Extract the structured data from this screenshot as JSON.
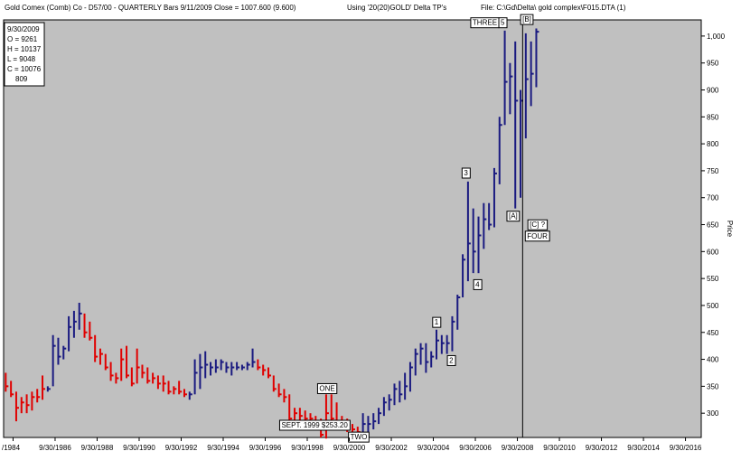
{
  "header": {
    "left": "Gold Comex (Comb) Co - D57/00  - QUARTERLY Bars  9/11/2009 Close = 1007.600 (9.600)",
    "mid": "Using '20(20)GOLD' Delta TP's",
    "right": "File: C:\\Gd\\Delta\\ gold complex\\F015.DTA (1)"
  },
  "info_box": {
    "date": "9/30/2009",
    "open": "O = 9261",
    "high": "H = 10137",
    "low": "L = 9048",
    "close": "C = 10076",
    "extra": "809"
  },
  "colors": {
    "plot_bg": "#c0c0c0",
    "up": "#1a1a80",
    "down": "#e00000",
    "axis": "#000000"
  },
  "chart_data": {
    "type": "bar",
    "subtype": "ohlc",
    "ylabel": "Price",
    "ylim": [
      255,
      1030
    ],
    "xlim": [
      1984.3,
      2017.5
    ],
    "x_tick_labels": [
      "/1984",
      "9/30/1986",
      "9/30/1988",
      "9/30/1990",
      "9/30/1992",
      "9/30/1994",
      "9/30/1996",
      "9/30/1998",
      "9/30/2000",
      "9/30/2002",
      "9/30/2004",
      "9/30/2006",
      "9/30/2008",
      "9/30/2010",
      "9/30/2012",
      "9/30/2014",
      "9/30/2016"
    ],
    "x_tick_values": [
      1984.75,
      1986.75,
      1988.75,
      1990.75,
      1992.75,
      1994.75,
      1996.75,
      1998.75,
      2000.75,
      2002.75,
      2004.75,
      2006.75,
      2008.75,
      2010.75,
      2012.75,
      2014.75,
      2016.75
    ],
    "y_ticks": [
      {
        "v": 300,
        "label": "300"
      },
      {
        "v": 350,
        "label": "350"
      },
      {
        "v": 400,
        "label": "400"
      },
      {
        "v": 450,
        "label": "450"
      },
      {
        "v": 500,
        "label": "500"
      },
      {
        "v": 550,
        "label": "550"
      },
      {
        "v": 600,
        "label": "600"
      },
      {
        "v": 650,
        "label": "650"
      },
      {
        "v": 700,
        "label": "700"
      },
      {
        "v": 750,
        "label": "750"
      },
      {
        "v": 800,
        "label": "800"
      },
      {
        "v": 850,
        "label": "850"
      },
      {
        "v": 900,
        "label": "900"
      },
      {
        "v": 950,
        "label": "950"
      },
      {
        "v": 1000,
        "label": "1,000"
      }
    ],
    "marker_line_x": 2009.0,
    "bars": [
      {
        "x": 1984.4,
        "h": 375,
        "l": 340,
        "c": 350,
        "color": "down"
      },
      {
        "x": 1984.65,
        "h": 360,
        "l": 330,
        "c": 335,
        "color": "down"
      },
      {
        "x": 1984.9,
        "h": 340,
        "l": 285,
        "c": 310,
        "color": "down"
      },
      {
        "x": 1985.15,
        "h": 330,
        "l": 300,
        "c": 320,
        "color": "down"
      },
      {
        "x": 1985.4,
        "h": 335,
        "l": 300,
        "c": 315,
        "color": "down"
      },
      {
        "x": 1985.65,
        "h": 340,
        "l": 305,
        "c": 330,
        "color": "down"
      },
      {
        "x": 1985.9,
        "h": 345,
        "l": 320,
        "c": 330,
        "color": "down"
      },
      {
        "x": 1986.15,
        "h": 370,
        "l": 325,
        "c": 345,
        "color": "down"
      },
      {
        "x": 1986.4,
        "h": 350,
        "l": 340,
        "c": 345,
        "color": "up"
      },
      {
        "x": 1986.65,
        "h": 445,
        "l": 350,
        "c": 425,
        "color": "up"
      },
      {
        "x": 1986.9,
        "h": 440,
        "l": 390,
        "c": 405,
        "color": "up"
      },
      {
        "x": 1987.15,
        "h": 425,
        "l": 400,
        "c": 420,
        "color": "up"
      },
      {
        "x": 1987.4,
        "h": 480,
        "l": 415,
        "c": 460,
        "color": "up"
      },
      {
        "x": 1987.65,
        "h": 490,
        "l": 440,
        "c": 470,
        "color": "up"
      },
      {
        "x": 1987.9,
        "h": 505,
        "l": 455,
        "c": 485,
        "color": "up"
      },
      {
        "x": 1988.15,
        "h": 485,
        "l": 440,
        "c": 450,
        "color": "down"
      },
      {
        "x": 1988.4,
        "h": 470,
        "l": 435,
        "c": 440,
        "color": "down"
      },
      {
        "x": 1988.65,
        "h": 445,
        "l": 395,
        "c": 405,
        "color": "down"
      },
      {
        "x": 1988.9,
        "h": 420,
        "l": 390,
        "c": 410,
        "color": "down"
      },
      {
        "x": 1989.15,
        "h": 410,
        "l": 380,
        "c": 385,
        "color": "down"
      },
      {
        "x": 1989.4,
        "h": 395,
        "l": 360,
        "c": 370,
        "color": "down"
      },
      {
        "x": 1989.65,
        "h": 375,
        "l": 355,
        "c": 365,
        "color": "down"
      },
      {
        "x": 1989.9,
        "h": 420,
        "l": 360,
        "c": 400,
        "color": "down"
      },
      {
        "x": 1990.15,
        "h": 425,
        "l": 365,
        "c": 370,
        "color": "down"
      },
      {
        "x": 1990.4,
        "h": 385,
        "l": 350,
        "c": 355,
        "color": "down"
      },
      {
        "x": 1990.65,
        "h": 420,
        "l": 355,
        "c": 385,
        "color": "down"
      },
      {
        "x": 1990.9,
        "h": 390,
        "l": 365,
        "c": 375,
        "color": "down"
      },
      {
        "x": 1991.15,
        "h": 385,
        "l": 355,
        "c": 360,
        "color": "down"
      },
      {
        "x": 1991.4,
        "h": 375,
        "l": 355,
        "c": 365,
        "color": "down"
      },
      {
        "x": 1991.65,
        "h": 370,
        "l": 345,
        "c": 355,
        "color": "down"
      },
      {
        "x": 1991.9,
        "h": 370,
        "l": 340,
        "c": 355,
        "color": "down"
      },
      {
        "x": 1992.15,
        "h": 360,
        "l": 335,
        "c": 340,
        "color": "down"
      },
      {
        "x": 1992.4,
        "h": 350,
        "l": 335,
        "c": 345,
        "color": "down"
      },
      {
        "x": 1992.65,
        "h": 360,
        "l": 335,
        "c": 340,
        "color": "down"
      },
      {
        "x": 1992.9,
        "h": 345,
        "l": 330,
        "c": 335,
        "color": "down"
      },
      {
        "x": 1993.15,
        "h": 340,
        "l": 325,
        "c": 335,
        "color": "up"
      },
      {
        "x": 1993.4,
        "h": 400,
        "l": 335,
        "c": 375,
        "color": "up"
      },
      {
        "x": 1993.65,
        "h": 410,
        "l": 345,
        "c": 385,
        "color": "up"
      },
      {
        "x": 1993.9,
        "h": 415,
        "l": 365,
        "c": 390,
        "color": "up"
      },
      {
        "x": 1994.15,
        "h": 395,
        "l": 370,
        "c": 385,
        "color": "up"
      },
      {
        "x": 1994.4,
        "h": 400,
        "l": 375,
        "c": 385,
        "color": "up"
      },
      {
        "x": 1994.65,
        "h": 400,
        "l": 380,
        "c": 395,
        "color": "up"
      },
      {
        "x": 1994.9,
        "h": 395,
        "l": 375,
        "c": 385,
        "color": "up"
      },
      {
        "x": 1995.15,
        "h": 395,
        "l": 370,
        "c": 385,
        "color": "up"
      },
      {
        "x": 1995.4,
        "h": 395,
        "l": 380,
        "c": 385,
        "color": "up"
      },
      {
        "x": 1995.65,
        "h": 390,
        "l": 380,
        "c": 385,
        "color": "up"
      },
      {
        "x": 1995.9,
        "h": 395,
        "l": 380,
        "c": 390,
        "color": "up"
      },
      {
        "x": 1996.15,
        "h": 420,
        "l": 385,
        "c": 395,
        "color": "up"
      },
      {
        "x": 1996.4,
        "h": 400,
        "l": 380,
        "c": 385,
        "color": "down"
      },
      {
        "x": 1996.65,
        "h": 390,
        "l": 370,
        "c": 380,
        "color": "down"
      },
      {
        "x": 1996.9,
        "h": 385,
        "l": 365,
        "c": 370,
        "color": "down"
      },
      {
        "x": 1997.15,
        "h": 370,
        "l": 340,
        "c": 345,
        "color": "down"
      },
      {
        "x": 1997.4,
        "h": 355,
        "l": 330,
        "c": 335,
        "color": "down"
      },
      {
        "x": 1997.65,
        "h": 345,
        "l": 320,
        "c": 330,
        "color": "down"
      },
      {
        "x": 1997.9,
        "h": 335,
        "l": 285,
        "c": 290,
        "color": "down"
      },
      {
        "x": 1998.15,
        "h": 310,
        "l": 280,
        "c": 300,
        "color": "down"
      },
      {
        "x": 1998.4,
        "h": 310,
        "l": 285,
        "c": 295,
        "color": "down"
      },
      {
        "x": 1998.65,
        "h": 305,
        "l": 275,
        "c": 290,
        "color": "down"
      },
      {
        "x": 1998.9,
        "h": 300,
        "l": 280,
        "c": 290,
        "color": "down"
      },
      {
        "x": 1999.15,
        "h": 295,
        "l": 275,
        "c": 285,
        "color": "down"
      },
      {
        "x": 1999.4,
        "h": 290,
        "l": 255,
        "c": 260,
        "color": "down"
      },
      {
        "x": 1999.65,
        "h": 335,
        "l": 253,
        "c": 300,
        "color": "down"
      },
      {
        "x": 1999.9,
        "h": 335,
        "l": 280,
        "c": 290,
        "color": "down"
      },
      {
        "x": 2000.15,
        "h": 320,
        "l": 280,
        "c": 285,
        "color": "down"
      },
      {
        "x": 2000.4,
        "h": 295,
        "l": 270,
        "c": 280,
        "color": "down"
      },
      {
        "x": 2000.65,
        "h": 290,
        "l": 265,
        "c": 275,
        "color": "down"
      },
      {
        "x": 2000.9,
        "h": 280,
        "l": 265,
        "c": 270,
        "color": "down"
      },
      {
        "x": 2001.15,
        "h": 275,
        "l": 260,
        "c": 265,
        "color": "down"
      },
      {
        "x": 2001.4,
        "h": 300,
        "l": 265,
        "c": 280,
        "color": "up"
      },
      {
        "x": 2001.65,
        "h": 295,
        "l": 265,
        "c": 280,
        "color": "up"
      },
      {
        "x": 2001.9,
        "h": 300,
        "l": 270,
        "c": 285,
        "color": "up"
      },
      {
        "x": 2002.15,
        "h": 310,
        "l": 280,
        "c": 300,
        "color": "up"
      },
      {
        "x": 2002.4,
        "h": 330,
        "l": 295,
        "c": 320,
        "color": "up"
      },
      {
        "x": 2002.65,
        "h": 335,
        "l": 305,
        "c": 325,
        "color": "up"
      },
      {
        "x": 2002.9,
        "h": 355,
        "l": 315,
        "c": 345,
        "color": "up"
      },
      {
        "x": 2003.15,
        "h": 360,
        "l": 320,
        "c": 335,
        "color": "up"
      },
      {
        "x": 2003.4,
        "h": 375,
        "l": 325,
        "c": 350,
        "color": "up"
      },
      {
        "x": 2003.65,
        "h": 395,
        "l": 340,
        "c": 385,
        "color": "up"
      },
      {
        "x": 2003.9,
        "h": 420,
        "l": 370,
        "c": 410,
        "color": "up"
      },
      {
        "x": 2004.15,
        "h": 430,
        "l": 390,
        "c": 420,
        "color": "up"
      },
      {
        "x": 2004.4,
        "h": 430,
        "l": 375,
        "c": 395,
        "color": "up"
      },
      {
        "x": 2004.65,
        "h": 415,
        "l": 385,
        "c": 405,
        "color": "up"
      },
      {
        "x": 2004.9,
        "h": 455,
        "l": 400,
        "c": 435,
        "color": "up"
      },
      {
        "x": 2005.15,
        "h": 445,
        "l": 410,
        "c": 430,
        "color": "up"
      },
      {
        "x": 2005.4,
        "h": 445,
        "l": 410,
        "c": 430,
        "color": "up"
      },
      {
        "x": 2005.65,
        "h": 480,
        "l": 415,
        "c": 470,
        "color": "up"
      },
      {
        "x": 2005.9,
        "h": 520,
        "l": 455,
        "c": 515,
        "color": "up"
      },
      {
        "x": 2006.15,
        "h": 595,
        "l": 515,
        "c": 585,
        "color": "up"
      },
      {
        "x": 2006.4,
        "h": 730,
        "l": 545,
        "c": 615,
        "color": "up"
      },
      {
        "x": 2006.65,
        "h": 680,
        "l": 560,
        "c": 600,
        "color": "up"
      },
      {
        "x": 2006.9,
        "h": 665,
        "l": 560,
        "c": 630,
        "color": "up"
      },
      {
        "x": 2007.15,
        "h": 690,
        "l": 605,
        "c": 660,
        "color": "up"
      },
      {
        "x": 2007.4,
        "h": 690,
        "l": 640,
        "c": 650,
        "color": "up"
      },
      {
        "x": 2007.65,
        "h": 755,
        "l": 645,
        "c": 745,
        "color": "up"
      },
      {
        "x": 2007.9,
        "h": 850,
        "l": 725,
        "c": 835,
        "color": "up"
      },
      {
        "x": 2008.15,
        "h": 1010,
        "l": 835,
        "c": 915,
        "color": "up"
      },
      {
        "x": 2008.4,
        "h": 950,
        "l": 855,
        "c": 925,
        "color": "up"
      },
      {
        "x": 2008.65,
        "h": 990,
        "l": 680,
        "c": 880,
        "color": "up"
      },
      {
        "x": 2008.9,
        "h": 900,
        "l": 700,
        "c": 880,
        "color": "up"
      },
      {
        "x": 2009.15,
        "h": 1005,
        "l": 810,
        "c": 920,
        "color": "up"
      },
      {
        "x": 2009.4,
        "h": 990,
        "l": 870,
        "c": 930,
        "color": "up"
      },
      {
        "x": 2009.65,
        "h": 1014,
        "l": 905,
        "c": 1008,
        "color": "up"
      }
    ],
    "annotations": [
      {
        "text": "ONE",
        "x": 1999.7,
        "y": 345
      },
      {
        "text": "SEPT. 1999  $253.20",
        "x": 1999.1,
        "y": 277
      },
      {
        "text": "TWO",
        "x": 2001.2,
        "y": 255
      },
      {
        "text": "1",
        "x": 2004.9,
        "y": 468
      },
      {
        "text": "2",
        "x": 2005.6,
        "y": 397
      },
      {
        "text": "3",
        "x": 2006.3,
        "y": 745
      },
      {
        "text": "4",
        "x": 2006.85,
        "y": 538
      },
      {
        "text": "THREE",
        "x": 2007.2,
        "y": 1024
      },
      {
        "text": "5",
        "x": 2008.05,
        "y": 1024
      },
      {
        "text": "[B]",
        "x": 2009.2,
        "y": 1030
      },
      {
        "text": "[A]",
        "x": 2008.55,
        "y": 665
      },
      {
        "text": "[C] ?",
        "x": 2009.7,
        "y": 649
      },
      {
        "text": "FOUR",
        "x": 2009.7,
        "y": 628
      }
    ]
  }
}
